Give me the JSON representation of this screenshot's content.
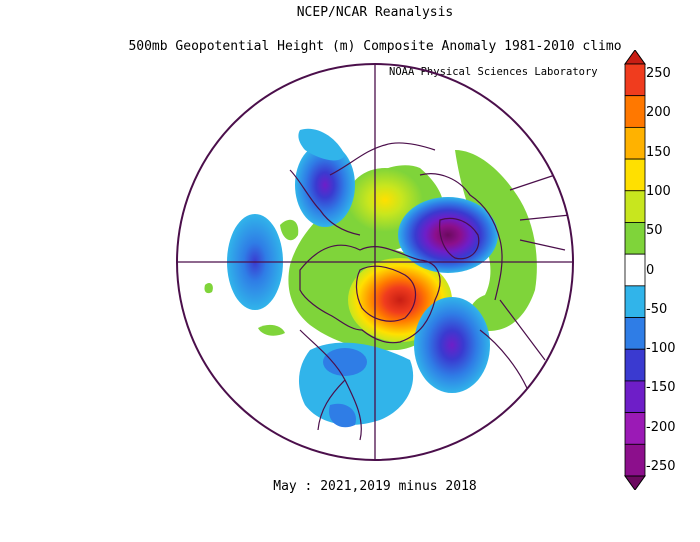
{
  "header": {
    "line1": "NCEP/NCAR Reanalysis",
    "line2": "500mb Geopotential Height (m) Composite Anomaly 1981-2010 climo",
    "lab": "NOAA Physical Sciences Laboratory"
  },
  "footer": {
    "caption": "May : 2021,2019 minus 2018"
  },
  "colorbar": {
    "labels": [
      "250",
      "200",
      "150",
      "100",
      "50",
      "0",
      "-50",
      "-100",
      "-150",
      "-200",
      "-250"
    ],
    "colors": [
      "#6b0a5f",
      "#8c0f8c",
      "#9b1ab6",
      "#6e1ec8",
      "#3a3ad0",
      "#2f7de6",
      "#31b4ea",
      "#ffffff",
      "#7fd43a",
      "#c8e61e",
      "#ffe000",
      "#ffb200",
      "#ff7800",
      "#f03c1e",
      "#c81e14"
    ]
  },
  "map": {
    "projection": "north-polar-stereographic",
    "anomaly_centers": [
      {
        "region": "Greenland / Arctic Canada",
        "sign": "positive",
        "level": 225
      },
      {
        "region": "Siberia",
        "sign": "positive",
        "level": 150
      },
      {
        "region": "North Atlantic / Europe",
        "sign": "negative",
        "level": -200
      },
      {
        "region": "Central Atlantic",
        "sign": "negative",
        "level": -130
      },
      {
        "region": "North Pacific",
        "sign": "negative",
        "level": -100
      },
      {
        "region": "Gulf of Alaska",
        "sign": "negative",
        "level": -100
      },
      {
        "region": "Eastern North America",
        "sign": "negative",
        "level": -60
      },
      {
        "region": "Eastern Europe / Western Asia",
        "sign": "positive",
        "level": 60
      }
    ]
  }
}
